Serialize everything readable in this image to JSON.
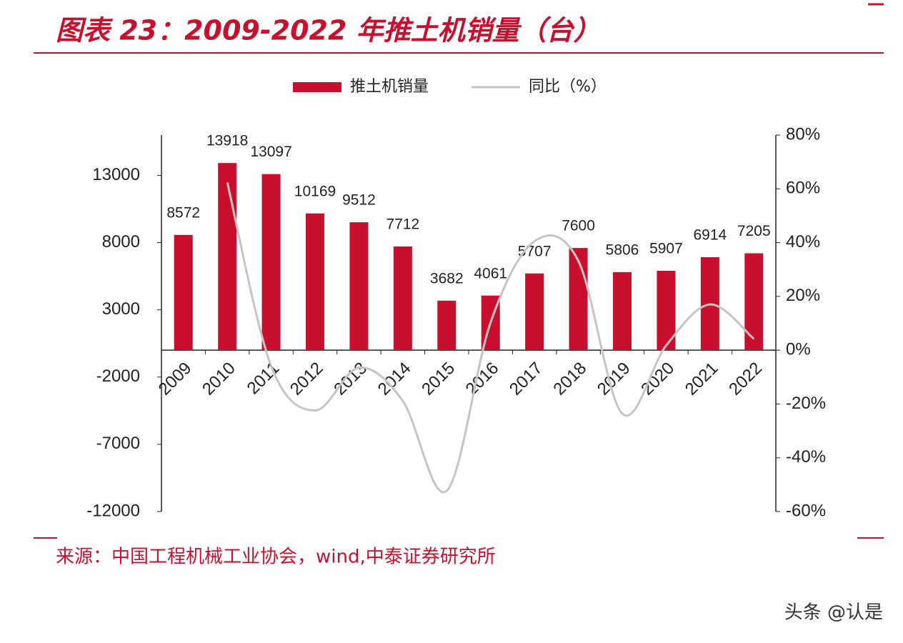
{
  "chart_data": {
    "type": "bar_line",
    "title": "图表 23：2009-2022 年推土机销量（台）",
    "source": "来源：中国工程机械工业协会，wind,中泰证券研究所",
    "watermark": "头条 @认是",
    "categories": [
      "2009",
      "2010",
      "2011",
      "2012",
      "2013",
      "2014",
      "2015",
      "2016",
      "2017",
      "2018",
      "2019",
      "2020",
      "2021",
      "2022"
    ],
    "series": [
      {
        "name": "推土机销量",
        "type": "bar",
        "color": "#c8102e",
        "values": [
          8572,
          13918,
          13097,
          10169,
          9512,
          7712,
          3682,
          4061,
          5707,
          7600,
          5806,
          5907,
          6914,
          7205
        ]
      },
      {
        "name": "同比（%）",
        "type": "line",
        "axis": "y2",
        "color": "#c4c4c4",
        "values": [
          null,
          62.4,
          -5.9,
          -22.4,
          -6.5,
          -18.9,
          -52.3,
          10.3,
          40.5,
          33.2,
          -23.6,
          1.7,
          17.0,
          4.2
        ]
      }
    ],
    "ylim": [
      -12000,
      16000
    ],
    "yticks": [
      -12000,
      -7000,
      -2000,
      3000,
      8000,
      13000
    ],
    "y2lim": [
      -60,
      80
    ],
    "y2ticks": [
      {
        "value": -60,
        "label": "-60%"
      },
      {
        "value": -40,
        "label": "-40%"
      },
      {
        "value": -20,
        "label": "-20%"
      },
      {
        "value": 0,
        "label": "0%"
      },
      {
        "value": 20,
        "label": "20%"
      },
      {
        "value": 40,
        "label": "40%"
      },
      {
        "value": 60,
        "label": "60%"
      },
      {
        "value": 80,
        "label": "80%"
      }
    ],
    "grid": false,
    "legend": "top"
  }
}
